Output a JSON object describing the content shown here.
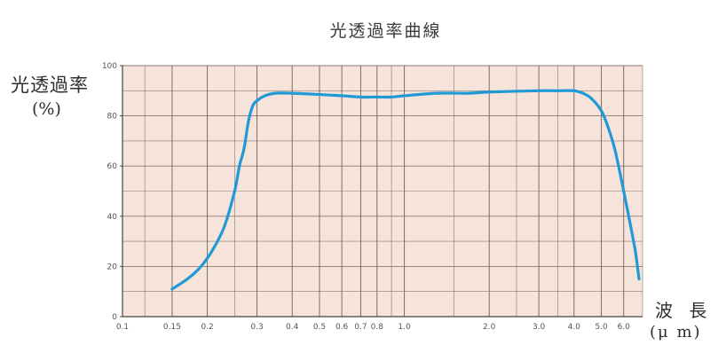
{
  "chart_data": {
    "type": "line",
    "title": "光透過率曲線",
    "ylabel_line1": "光透過率",
    "ylabel_line2": "(%)",
    "xlabel_line1": "波 長",
    "xlabel_line2": "(μ m)",
    "xscale": "log",
    "xlim": [
      0.1,
      7.0
    ],
    "ylim": [
      0,
      100
    ],
    "grid": true,
    "y_ticks": [
      0,
      20,
      40,
      60,
      80,
      100
    ],
    "x_ticks": [
      0.1,
      0.15,
      0.2,
      0.3,
      0.4,
      0.5,
      0.6,
      0.7,
      0.8,
      1.0,
      2.0,
      3.0,
      4.0,
      5.0,
      6.0
    ],
    "x_tick_labels": [
      "0.1",
      "0.15",
      "0.2",
      "0.3",
      "0.4",
      "0.5",
      "0.6",
      "0.7",
      "0.8",
      "1.0",
      "2.0",
      "3.0",
      "4.0",
      "5.0",
      "6.0"
    ],
    "series": [
      {
        "color": "#1f9ad6",
        "x": [
          0.15,
          0.17,
          0.19,
          0.21,
          0.23,
          0.25,
          0.26,
          0.27,
          0.28,
          0.29,
          0.3,
          0.32,
          0.35,
          0.4,
          0.5,
          0.6,
          0.7,
          0.8,
          0.9,
          1.0,
          1.3,
          1.7,
          2.0,
          3.0,
          3.5,
          4.0,
          4.3,
          4.6,
          5.0,
          5.3,
          5.6,
          6.0,
          6.3,
          6.6,
          6.8
        ],
        "y": [
          11,
          15,
          20,
          27,
          36,
          50,
          60,
          67,
          78,
          84,
          86,
          88,
          89,
          89,
          88.5,
          88,
          87.5,
          87.5,
          87.5,
          88,
          89,
          89,
          89.5,
          90,
          90,
          90,
          89,
          87,
          82,
          75,
          66,
          50,
          38,
          26,
          15
        ]
      }
    ]
  }
}
